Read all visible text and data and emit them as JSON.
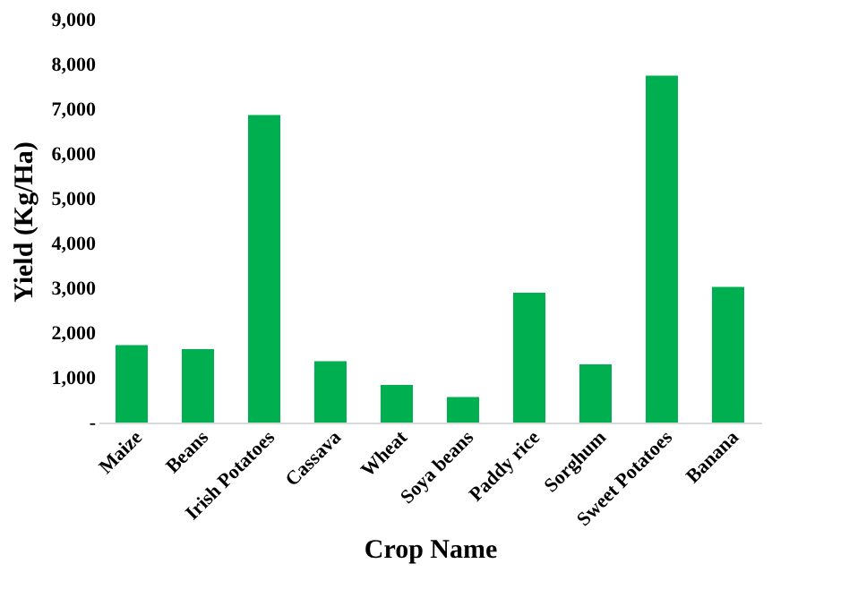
{
  "chart_data": {
    "type": "bar",
    "xlabel": "Crop Name",
    "ylabel": "Yield (Kg/Ha)",
    "categories": [
      "Maize",
      "Beans",
      "Irish Potatoes",
      "Cassava",
      "Wheat",
      "Soya beans",
      "Paddy rice",
      "Sorghum",
      "Sweet Potatoes",
      "Banana"
    ],
    "values": [
      1730,
      1640,
      6870,
      1370,
      840,
      570,
      2900,
      1300,
      7750,
      3030
    ],
    "color": "#00b050",
    "ylim": [
      0,
      9000
    ],
    "yticks": [
      {
        "value": 0,
        "label": "-"
      },
      {
        "value": 1000,
        "label": "1,000"
      },
      {
        "value": 2000,
        "label": "2,000"
      },
      {
        "value": 3000,
        "label": "3,000"
      },
      {
        "value": 4000,
        "label": "4,000"
      },
      {
        "value": 5000,
        "label": "5,000"
      },
      {
        "value": 6000,
        "label": "6,000"
      },
      {
        "value": 7000,
        "label": "7,000"
      },
      {
        "value": 8000,
        "label": "8,000"
      },
      {
        "value": 9000,
        "label": "9,000"
      }
    ],
    "grid": false
  }
}
